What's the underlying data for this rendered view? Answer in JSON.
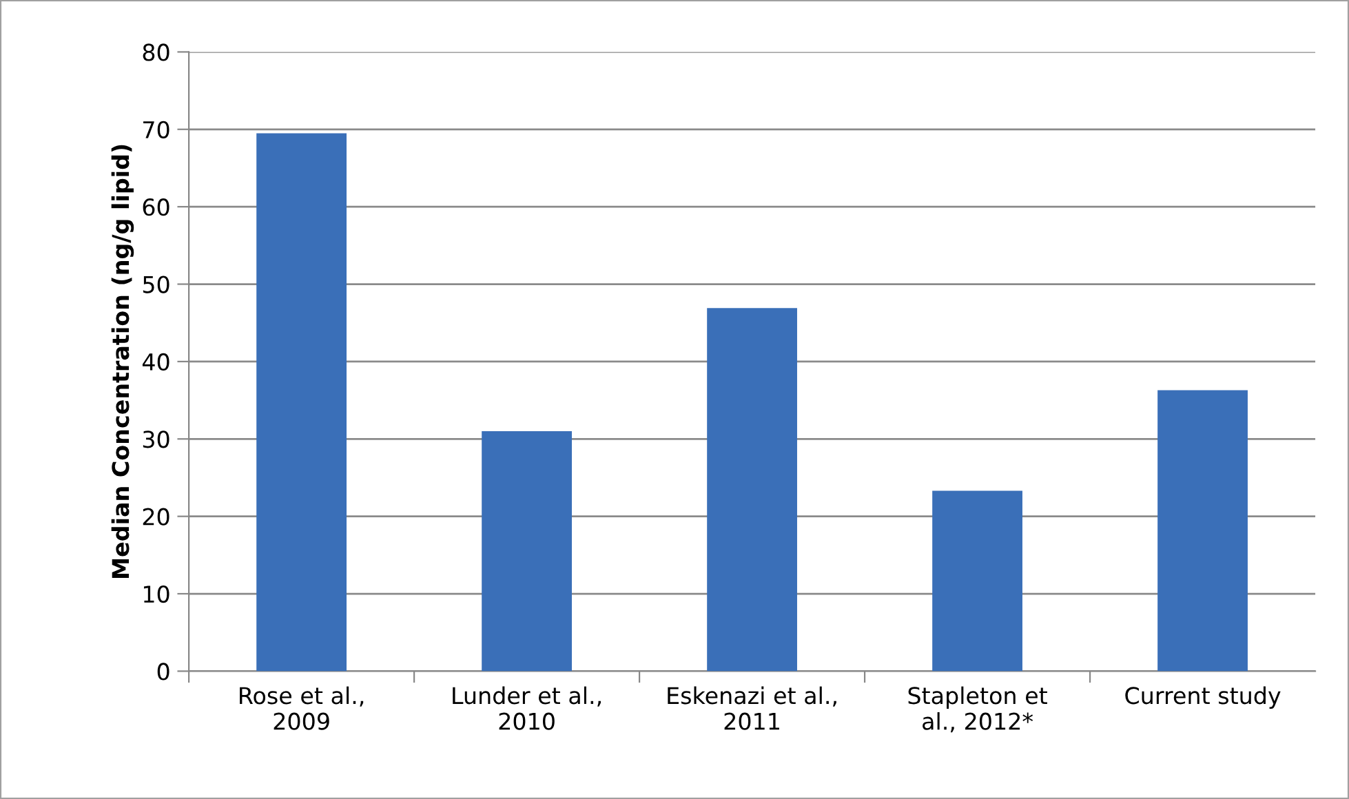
{
  "chart_data": {
    "type": "bar",
    "ylabel": "Median Concentration (ng/g lipid)",
    "categories": [
      "Rose et al.,\n2009",
      "Lunder et al.,\n2010",
      "Eskenazi et al.,\n2011",
      "Stapleton et\nal., 2012*",
      "Current study"
    ],
    "values": [
      69.5,
      31.0,
      46.9,
      23.3,
      36.3
    ],
    "color": "#3a6fb8",
    "ylim": [
      0,
      80
    ],
    "yticks": [
      0,
      10,
      20,
      30,
      40,
      50,
      60,
      70,
      80
    ],
    "grid": "y"
  }
}
